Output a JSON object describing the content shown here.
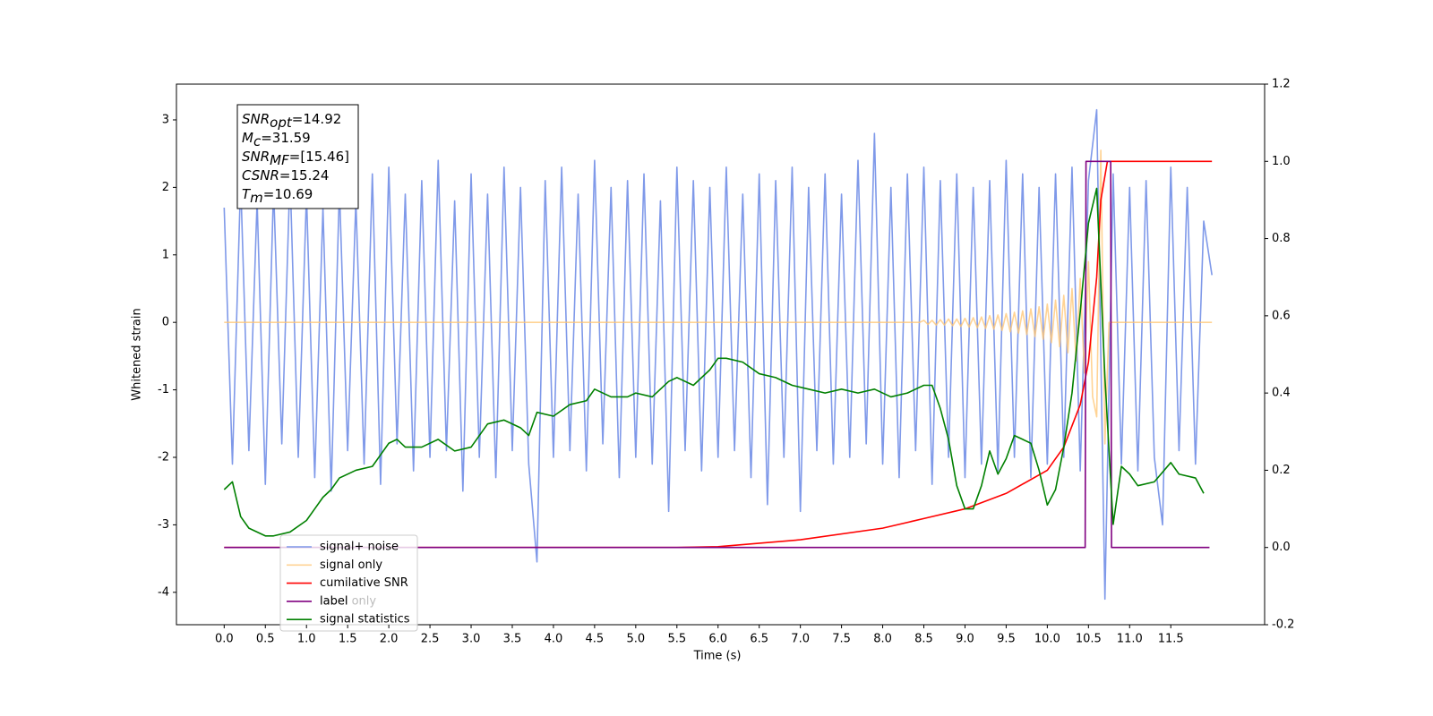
{
  "chart_data": {
    "type": "line",
    "xlabel": "Time (s)",
    "ylabel": "Whitened strain",
    "xlim": [
      -0.58,
      12.64
    ],
    "ylim": [
      -4.48,
      3.53
    ],
    "y2lim": [
      -0.2,
      1.2
    ],
    "xticks": [
      {
        "value": 0,
        "label": "0.0"
      },
      0.5,
      {
        "value": 1,
        "label": "1.0"
      },
      1.5,
      {
        "value": 2,
        "label": "2.0"
      },
      2.5,
      {
        "value": 3,
        "label": "3.0"
      },
      3.5,
      {
        "value": 4,
        "label": "4.0"
      },
      4.5,
      {
        "value": 5,
        "label": "5.0"
      },
      5.5,
      {
        "value": 6,
        "label": "6.0"
      },
      6.5,
      {
        "value": 7,
        "label": "7.0"
      },
      7.5,
      {
        "value": 8,
        "label": "8.0"
      },
      8.5,
      {
        "value": 9,
        "label": "9.0"
      },
      9.5,
      {
        "value": 10,
        "label": "10.0"
      },
      10.5,
      {
        "value": 11,
        "label": "11.0"
      },
      11.5
    ],
    "yticks": [
      -4,
      -3,
      -2,
      -1,
      0,
      1,
      2,
      3
    ],
    "y2ticks": [
      -0.2,
      {
        "value": 0,
        "label": "0.0"
      },
      0.2,
      0.4,
      0.6,
      0.8,
      {
        "value": 1,
        "label": "1.0"
      },
      1.2
    ],
    "annotations": [
      {
        "base": "SNR",
        "sub": "opt",
        "text": "=14.92"
      },
      {
        "base": "M",
        "sub": "c",
        "text": "=31.59"
      },
      {
        "base": "SNR",
        "sub": "MF",
        "text": "=[15.46]"
      },
      {
        "base": "CSNR",
        "sub": "",
        "text": "=15.24"
      },
      {
        "base": "T",
        "sub": "m",
        "text": "=10.69"
      }
    ],
    "ghost_legend_text": "label only",
    "series": [
      {
        "name": "signal+ noise",
        "color": "#7893e8",
        "axis": "y",
        "x": [
          0,
          0.1,
          0.2,
          0.3,
          0.4,
          0.5,
          0.6,
          0.7,
          0.8,
          0.9,
          1,
          1.1,
          1.2,
          1.3,
          1.4,
          1.5,
          1.6,
          1.7,
          1.8,
          1.9,
          2,
          2.1,
          2.2,
          2.3,
          2.4,
          2.5,
          2.6,
          2.7,
          2.8,
          2.9,
          3,
          3.1,
          3.2,
          3.3,
          3.4,
          3.5,
          3.6,
          3.7,
          3.8,
          3.9,
          4,
          4.1,
          4.2,
          4.3,
          4.4,
          4.5,
          4.6,
          4.7,
          4.8,
          4.9,
          5,
          5.1,
          5.2,
          5.3,
          5.4,
          5.5,
          5.6,
          5.7,
          5.8,
          5.9,
          6,
          6.1,
          6.2,
          6.3,
          6.4,
          6.5,
          6.6,
          6.7,
          6.8,
          6.9,
          7,
          7.1,
          7.2,
          7.3,
          7.4,
          7.5,
          7.6,
          7.7,
          7.8,
          7.9,
          8,
          8.1,
          8.2,
          8.3,
          8.4,
          8.5,
          8.6,
          8.7,
          8.8,
          8.9,
          9,
          9.1,
          9.2,
          9.3,
          9.4,
          9.5,
          9.6,
          9.7,
          9.8,
          9.9,
          10,
          10.1,
          10.2,
          10.3,
          10.4,
          10.5,
          10.6,
          10.7,
          10.8,
          10.9,
          11,
          11.1,
          11.2,
          11.3,
          11.4,
          11.5,
          11.6,
          11.7,
          11.8,
          11.9,
          12
        ],
        "values": [
          1.7,
          -2.1,
          2.1,
          -1.9,
          1.8,
          -2.4,
          2.0,
          -1.8,
          2.2,
          -2.0,
          1.9,
          -2.3,
          1.7,
          -2.5,
          2.0,
          -1.9,
          1.8,
          -2.1,
          2.2,
          -2.4,
          2.3,
          -1.8,
          1.9,
          -2.2,
          2.1,
          -2.0,
          2.4,
          -1.9,
          1.8,
          -2.5,
          2.2,
          -2.0,
          1.9,
          -2.3,
          2.3,
          -1.9,
          2.0,
          -2.1,
          -3.55,
          2.1,
          -2.0,
          2.3,
          -1.9,
          1.9,
          -2.2,
          2.4,
          -1.8,
          2.0,
          -2.3,
          2.1,
          -2.0,
          2.2,
          -2.1,
          1.8,
          -2.8,
          2.3,
          -1.9,
          2.1,
          -2.2,
          2.0,
          -2.0,
          2.3,
          -1.9,
          1.9,
          -2.3,
          2.2,
          -2.7,
          2.1,
          -2.0,
          2.3,
          -2.8,
          2.0,
          -1.9,
          2.2,
          -2.1,
          1.9,
          -2.0,
          2.4,
          -1.8,
          2.8,
          -2.1,
          2.0,
          -2.3,
          2.2,
          -1.9,
          2.3,
          -2.4,
          2.1,
          -2.0,
          2.2,
          -2.3,
          2.0,
          -2.1,
          2.1,
          -2.2,
          2.4,
          -2.0,
          2.2,
          -2.3,
          2.0,
          -2.1,
          2.2,
          -2.0,
          2.3,
          -2.2,
          2.1,
          3.15,
          -4.1,
          2.2,
          -2.1,
          2.0,
          -2.2,
          2.1,
          -2.0,
          -3.0,
          2.3,
          -1.9,
          2.0,
          -2.1,
          1.5,
          0.7
        ]
      },
      {
        "name": "signal only",
        "color": "#ffc470",
        "axis": "y",
        "x": [
          0,
          8.45,
          8.5,
          8.55,
          8.6,
          8.65,
          8.7,
          8.75,
          8.8,
          8.85,
          8.9,
          8.95,
          9,
          9.05,
          9.1,
          9.15,
          9.2,
          9.25,
          9.3,
          9.35,
          9.4,
          9.45,
          9.5,
          9.55,
          9.6,
          9.65,
          9.7,
          9.75,
          9.8,
          9.85,
          9.9,
          9.95,
          10,
          10.05,
          10.1,
          10.15,
          10.2,
          10.25,
          10.3,
          10.35,
          10.4,
          10.45,
          10.5,
          10.55,
          10.6,
          10.65,
          10.7,
          10.75,
          12
        ],
        "values": [
          0,
          0,
          0.03,
          -0.03,
          0.03,
          -0.04,
          0.04,
          -0.04,
          0.05,
          -0.05,
          0.05,
          -0.06,
          0.06,
          -0.07,
          0.07,
          -0.08,
          0.08,
          -0.09,
          0.1,
          -0.1,
          0.11,
          -0.12,
          0.13,
          -0.14,
          0.15,
          -0.16,
          0.17,
          -0.18,
          0.2,
          -0.21,
          0.23,
          -0.25,
          0.27,
          -0.3,
          0.33,
          -0.36,
          0.4,
          -0.45,
          0.5,
          -0.57,
          0.65,
          -0.75,
          0.9,
          -1.1,
          -1.4,
          2.55,
          -1.8,
          0,
          0
        ]
      },
      {
        "name": "cumilative SNR",
        "color": "#ff0000",
        "axis": "y2",
        "x": [
          0,
          5.5,
          6,
          7,
          8,
          8.5,
          9,
          9.5,
          10,
          10.2,
          10.4,
          10.5,
          10.6,
          10.65,
          10.73,
          12
        ],
        "values": [
          0,
          0,
          0.002,
          0.02,
          0.05,
          0.075,
          0.1,
          0.14,
          0.2,
          0.26,
          0.37,
          0.48,
          0.7,
          0.9,
          1.0,
          1.0
        ]
      },
      {
        "name": "label",
        "color": "#800080",
        "axis": "y2",
        "x": [
          0,
          10.46,
          10.47,
          10.77,
          10.78,
          11.97
        ],
        "values": [
          0,
          0,
          1,
          1,
          0,
          0
        ]
      },
      {
        "name": "signal statistics",
        "color": "#008000",
        "axis": "y2",
        "x": [
          0,
          0.1,
          0.2,
          0.3,
          0.5,
          0.6,
          0.8,
          1.0,
          1.1,
          1.2,
          1.3,
          1.4,
          1.6,
          1.8,
          1.9,
          2.0,
          2.1,
          2.2,
          2.4,
          2.6,
          2.8,
          3.0,
          3.2,
          3.4,
          3.6,
          3.7,
          3.8,
          4.0,
          4.2,
          4.4,
          4.5,
          4.7,
          4.9,
          5.0,
          5.2,
          5.4,
          5.5,
          5.7,
          5.9,
          6.0,
          6.1,
          6.3,
          6.5,
          6.7,
          6.9,
          7.1,
          7.3,
          7.5,
          7.7,
          7.9,
          8.1,
          8.3,
          8.5,
          8.6,
          8.7,
          8.8,
          8.9,
          9.0,
          9.1,
          9.2,
          9.3,
          9.4,
          9.5,
          9.6,
          9.7,
          9.8,
          9.9,
          10.0,
          10.1,
          10.2,
          10.3,
          10.4,
          10.5,
          10.6,
          10.7,
          10.8,
          10.9,
          11.0,
          11.1,
          11.3,
          11.5,
          11.6,
          11.8,
          11.9
        ],
        "values": [
          0.15,
          0.17,
          0.08,
          0.05,
          0.03,
          0.03,
          0.04,
          0.07,
          0.1,
          0.13,
          0.15,
          0.18,
          0.2,
          0.21,
          0.24,
          0.27,
          0.28,
          0.26,
          0.26,
          0.28,
          0.25,
          0.26,
          0.32,
          0.33,
          0.31,
          0.29,
          0.35,
          0.34,
          0.37,
          0.38,
          0.41,
          0.39,
          0.39,
          0.4,
          0.39,
          0.43,
          0.44,
          0.42,
          0.46,
          0.49,
          0.49,
          0.48,
          0.45,
          0.44,
          0.42,
          0.41,
          0.4,
          0.41,
          0.4,
          0.41,
          0.39,
          0.4,
          0.42,
          0.42,
          0.36,
          0.28,
          0.16,
          0.1,
          0.1,
          0.16,
          0.25,
          0.19,
          0.23,
          0.29,
          0.28,
          0.27,
          0.2,
          0.11,
          0.15,
          0.26,
          0.4,
          0.61,
          0.84,
          0.93,
          0.44,
          0.06,
          0.21,
          0.19,
          0.16,
          0.17,
          0.22,
          0.19,
          0.18,
          0.14
        ]
      }
    ]
  }
}
